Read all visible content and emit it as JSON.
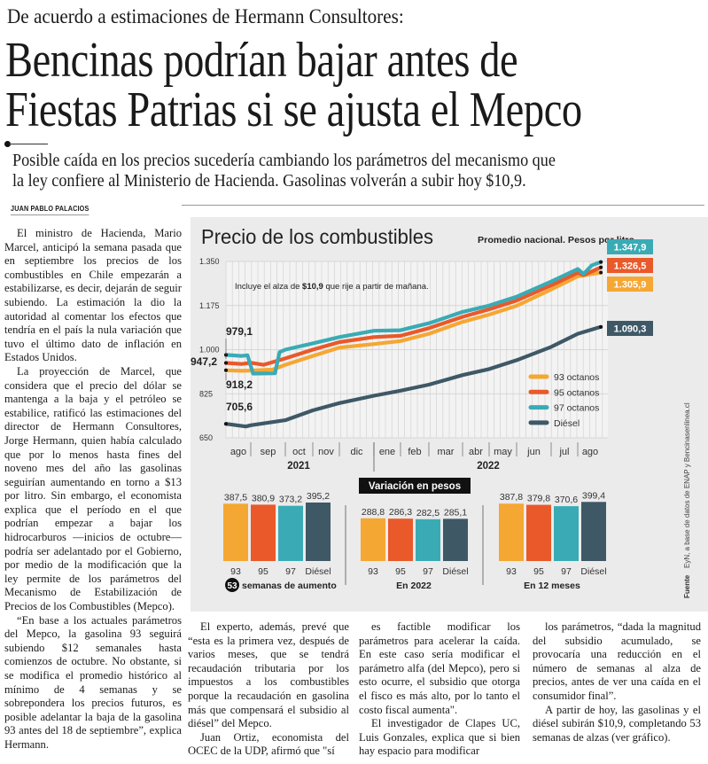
{
  "article": {
    "kicker": "De acuerdo a estimaciones de Hermann Consultores:",
    "headline_lines": [
      "Bencinas podrían bajar antes de",
      "Fiestas Patrias si se ajusta el Mepco"
    ],
    "deck_lines": [
      "Posible caída en los precios sucedería cambiando los parámetros del mecanismo que",
      "la ley confiere al Ministerio de Hacienda. Gasolinas volverán a subir hoy $10,9."
    ],
    "byline": "JUAN PABLO PALACIOS",
    "col_a": [
      "El ministro de Hacienda, Mario Marcel, anticipó la semana pasada que en septiembre los precios de los combustibles en Chile empezarán a estabilizarse, es decir, dejarán de seguir subiendo. La estimación la dio la autoridad al comentar los efectos que tendría en el país la nula variación que tuvo el último dato de inflación en Estados Unidos.",
      "La proyección de Marcel, que considera que el precio del dólar se mantenga a la baja y el petróleo se estabilice, ratificó las estimaciones del director de Hermann Consultores, Jorge Hermann, quien había calculado que por lo menos hasta fines del noveno mes del año las gasolinas seguirían aumentando en torno a $13 por litro. Sin embargo, el economista explica que el período en el que podrían empezar a bajar los hidrocarburos —inicios de octubre— podría ser adelantado por el Gobierno, por medio de la modificación que la ley permite de los parámetros del Mecanismo de Estabilización de Precios de los Combustibles (Mepco).",
      "“En base a los actuales parámetros del Mepco, la gasolina 93 seguirá subiendo $12 semanales hasta comienzos de octubre. No obstante, si se modifica el promedio histórico al mínimo de 4 semanas y se sobrepondera los precios futuros, es posible adelantar la baja de la gasolina 93 antes del 18 de septiembre”, explica Hermann."
    ],
    "col_b": [
      "El experto, además, prevé que “esta es la primera vez, después de varios meses, que se tendrá recaudación tributaria por los impuestos a los combustibles porque la recaudación en gasolina más que compensará el subsidio al diésel” del Mepco.",
      "Juan Ortiz, economista del OCEC de la UDP, afirmó que \"sí"
    ],
    "col_c": [
      "es factible modificar los parámetros para acelerar la caída. En este caso sería modificar el parámetro alfa (del Mepco), pero si esto ocurre, el subsidio que otorga el fisco es más alto, por lo tanto el costo fiscal aumenta\".",
      "El investigador de Clapes UC, Luis Gonzales, explica que si bien hay espacio para modificar"
    ],
    "col_d": [
      "los parámetros, “dada la magnitud del subsidio acumulado, se provocaría una reducción en el número de semanas al alza de precios, antes de ver una caída en el consumidor final”.",
      "A partir de hoy, las gasolinas y el diésel subirán $10,9, completando 53 semanas de alzas (ver gráfico)."
    ]
  },
  "colors": {
    "g93": "#f5a733",
    "g95": "#e9592a",
    "g97": "#3aabb5",
    "diesel": "#3e5866",
    "panel_bg": "#ebebeb"
  },
  "chart_data": [
    {
      "type": "line",
      "title": "Precio de los combustibles",
      "subtitle": "Promedio nacional. Pesos por litro.",
      "annotation_pre": "Incluye el alza de ",
      "annotation_bold": "$10,9",
      "annotation_post": " que rije a partir de mañana.",
      "ylim": [
        650,
        1350
      ],
      "yticks": [
        "1.350",
        "1.175",
        "1.000",
        "825",
        "650"
      ],
      "ytick_values": [
        1350,
        1175,
        1000,
        825,
        650
      ],
      "months": [
        "ago",
        "sep",
        "oct",
        "nov",
        "dic",
        "ene",
        "feb",
        "mar",
        "abr",
        "may",
        "jun",
        "jul",
        "ago"
      ],
      "years": [
        "2021",
        "2022"
      ],
      "grid": "vertical weekly",
      "legend_position": "bottom-right",
      "start_labels": {
        "g97": "979,1",
        "g95": "947,2",
        "g93": "918,2",
        "diesel": "705,6"
      },
      "end_labels": {
        "g97": "1.347,9",
        "g95": "1.326,5",
        "g93": "1.305,9",
        "diesel": "1.090,3"
      },
      "series": [
        {
          "key": "g93",
          "name": "93 octanos",
          "points": [
            [
              "2021-08-01",
              918.2
            ],
            [
              "2021-08-20",
              916
            ],
            [
              "2021-09-01",
              917
            ],
            [
              "2021-09-20",
              921
            ],
            [
              "2021-10-01",
              940
            ],
            [
              "2021-11-01",
              975
            ],
            [
              "2021-12-01",
              1008
            ],
            [
              "2022-01-01",
              1022
            ],
            [
              "2022-02-01",
              1034
            ],
            [
              "2022-03-01",
              1063
            ],
            [
              "2022-04-01",
              1110
            ],
            [
              "2022-05-01",
              1139
            ],
            [
              "2022-06-01",
              1174
            ],
            [
              "2022-07-01",
              1239
            ],
            [
              "2022-08-01",
              1291
            ],
            [
              "2022-08-29",
              1305.9
            ]
          ]
        },
        {
          "key": "g95",
          "name": "95 octanos",
          "points": [
            [
              "2021-08-01",
              947.2
            ],
            [
              "2021-08-20",
              943
            ],
            [
              "2021-09-01",
              948
            ],
            [
              "2021-09-12",
              940
            ],
            [
              "2021-10-01",
              965
            ],
            [
              "2021-11-01",
              1000
            ],
            [
              "2021-12-01",
              1030
            ],
            [
              "2022-01-01",
              1050
            ],
            [
              "2022-02-01",
              1055
            ],
            [
              "2022-03-01",
              1085
            ],
            [
              "2022-04-01",
              1130
            ],
            [
              "2022-05-01",
              1160
            ],
            [
              "2022-06-01",
              1195
            ],
            [
              "2022-07-01",
              1255
            ],
            [
              "2022-08-01",
              1305
            ],
            [
              "2022-08-08",
              1296
            ],
            [
              "2022-08-29",
              1326.5
            ]
          ]
        },
        {
          "key": "g97",
          "name": "97 octanos",
          "points": [
            [
              "2021-08-01",
              979.1
            ],
            [
              "2021-08-20",
              975
            ],
            [
              "2021-08-27",
              978
            ],
            [
              "2021-09-03",
              905
            ],
            [
              "2021-09-22",
              906
            ],
            [
              "2021-09-26",
              990
            ],
            [
              "2021-10-01",
              1000
            ],
            [
              "2021-11-01",
              1025
            ],
            [
              "2021-12-01",
              1050
            ],
            [
              "2022-01-01",
              1075
            ],
            [
              "2022-02-01",
              1077
            ],
            [
              "2022-03-01",
              1105
            ],
            [
              "2022-04-01",
              1150
            ],
            [
              "2022-05-01",
              1175
            ],
            [
              "2022-06-01",
              1210
            ],
            [
              "2022-07-01",
              1270
            ],
            [
              "2022-08-01",
              1320
            ],
            [
              "2022-08-08",
              1300
            ],
            [
              "2022-08-18",
              1335
            ],
            [
              "2022-08-29",
              1347.9
            ]
          ]
        },
        {
          "key": "diesel",
          "name": "Diésel",
          "points": [
            [
              "2021-08-01",
              705.6
            ],
            [
              "2021-08-25",
              695
            ],
            [
              "2021-09-01",
              700
            ],
            [
              "2021-10-01",
              720
            ],
            [
              "2021-11-01",
              759
            ],
            [
              "2021-12-01",
              788
            ],
            [
              "2022-01-01",
              817
            ],
            [
              "2022-02-01",
              837
            ],
            [
              "2022-03-01",
              861
            ],
            [
              "2022-04-01",
              899
            ],
            [
              "2022-05-01",
              923
            ],
            [
              "2022-06-01",
              958
            ],
            [
              "2022-07-01",
              1011
            ],
            [
              "2022-08-01",
              1063
            ],
            [
              "2022-08-29",
              1090.3
            ]
          ]
        }
      ]
    },
    {
      "type": "bar",
      "title": "Variación en pesos",
      "categories": [
        "93",
        "95",
        "97",
        "Diésel"
      ],
      "groups": [
        {
          "caption_badge": "53",
          "caption": "semanas de aumento",
          "values": [
            387.5,
            380.9,
            373.2,
            395.2
          ],
          "labels": [
            "387,5",
            "380,9",
            "373,2",
            "395,2"
          ]
        },
        {
          "caption": "En 2022",
          "values": [
            288.8,
            286.3,
            282.5,
            285.1
          ],
          "labels": [
            "288,8",
            "286,3",
            "282,5",
            "285,1"
          ]
        },
        {
          "caption": "En 12 meses",
          "values": [
            387.8,
            379.8,
            370.6,
            399.4
          ],
          "labels": [
            "387,8",
            "379,8",
            "370,6",
            "399,4"
          ]
        }
      ]
    }
  ],
  "source": {
    "label": "Fuente",
    "text": "EyN, a base de datos de ENAP y Bencinasenlinea.cl"
  }
}
